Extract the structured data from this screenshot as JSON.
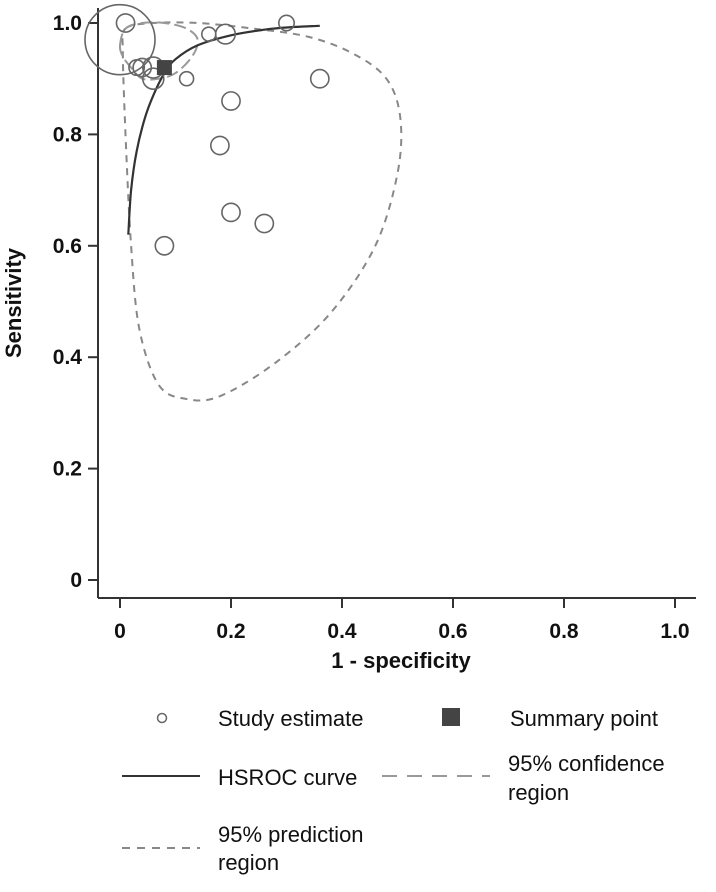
{
  "chart_data": {
    "type": "scatter",
    "xlabel": "1 - specificity",
    "ylabel": "Sensitivity",
    "xlim": [
      0,
      1.0
    ],
    "ylim": [
      0,
      1.0
    ],
    "x_ticks": [
      "0",
      "0.2",
      "0.4",
      "0.6",
      "0.8",
      "1.0"
    ],
    "y_ticks": [
      "0",
      "0.2",
      "0.4",
      "0.6",
      "0.8",
      "1.0"
    ],
    "grid": false,
    "legend_position": "bottom",
    "colors": {
      "study": "#666666",
      "summary": "#444444",
      "curve": "#333333",
      "confidence": "#999999",
      "prediction": "#888888"
    },
    "studies": [
      {
        "x": 0.0,
        "y": 0.97,
        "weight": 5.0
      },
      {
        "x": 0.01,
        "y": 1.0,
        "weight": 1.3
      },
      {
        "x": 0.03,
        "y": 0.92,
        "weight": 1.1
      },
      {
        "x": 0.04,
        "y": 0.92,
        "weight": 1.3
      },
      {
        "x": 0.06,
        "y": 0.92,
        "weight": 1.5
      },
      {
        "x": 0.06,
        "y": 0.9,
        "weight": 1.5
      },
      {
        "x": 0.12,
        "y": 0.9,
        "weight": 1.0
      },
      {
        "x": 0.16,
        "y": 0.98,
        "weight": 1.0
      },
      {
        "x": 0.19,
        "y": 0.98,
        "weight": 1.4
      },
      {
        "x": 0.3,
        "y": 1.0,
        "weight": 1.1
      },
      {
        "x": 0.36,
        "y": 0.9,
        "weight": 1.3
      },
      {
        "x": 0.2,
        "y": 0.86,
        "weight": 1.3
      },
      {
        "x": 0.18,
        "y": 0.78,
        "weight": 1.3
      },
      {
        "x": 0.2,
        "y": 0.66,
        "weight": 1.3
      },
      {
        "x": 0.26,
        "y": 0.64,
        "weight": 1.3
      },
      {
        "x": 0.08,
        "y": 0.6,
        "weight": 1.3
      }
    ],
    "summary_point": {
      "x": 0.08,
      "y": 0.92
    },
    "hsroc_curve": [
      [
        0.015,
        0.62
      ],
      [
        0.02,
        0.7
      ],
      [
        0.03,
        0.77
      ],
      [
        0.045,
        0.83
      ],
      [
        0.06,
        0.87
      ],
      [
        0.08,
        0.91
      ],
      [
        0.1,
        0.935
      ],
      [
        0.14,
        0.96
      ],
      [
        0.2,
        0.978
      ],
      [
        0.26,
        0.988
      ],
      [
        0.3,
        0.992
      ],
      [
        0.36,
        0.995
      ]
    ],
    "confidence_region": [
      [
        0.0,
        0.96
      ],
      [
        0.01,
        0.99
      ],
      [
        0.04,
        1.0
      ],
      [
        0.08,
        1.0
      ],
      [
        0.12,
        0.99
      ],
      [
        0.14,
        0.97
      ],
      [
        0.13,
        0.94
      ],
      [
        0.1,
        0.91
      ],
      [
        0.07,
        0.9
      ],
      [
        0.04,
        0.9
      ],
      [
        0.02,
        0.92
      ],
      [
        0.005,
        0.94
      ]
    ],
    "prediction_region": [
      [
        0.01,
        0.99
      ],
      [
        0.06,
        1.0
      ],
      [
        0.14,
        1.0
      ],
      [
        0.24,
        0.99
      ],
      [
        0.34,
        0.975
      ],
      [
        0.42,
        0.945
      ],
      [
        0.48,
        0.9
      ],
      [
        0.505,
        0.83
      ],
      [
        0.5,
        0.73
      ],
      [
        0.46,
        0.6
      ],
      [
        0.38,
        0.48
      ],
      [
        0.28,
        0.39
      ],
      [
        0.18,
        0.33
      ],
      [
        0.12,
        0.325
      ],
      [
        0.07,
        0.35
      ],
      [
        0.035,
        0.45
      ],
      [
        0.02,
        0.6
      ],
      [
        0.01,
        0.8
      ],
      [
        0.005,
        0.95
      ]
    ],
    "legend": {
      "study_estimate": "Study estimate",
      "summary_point": "Summary point",
      "hsroc_curve": "HSROC curve",
      "confidence_line1": "95% confidence",
      "confidence_line2": "region",
      "prediction_line1": "95% prediction",
      "prediction_line2": "region"
    }
  }
}
